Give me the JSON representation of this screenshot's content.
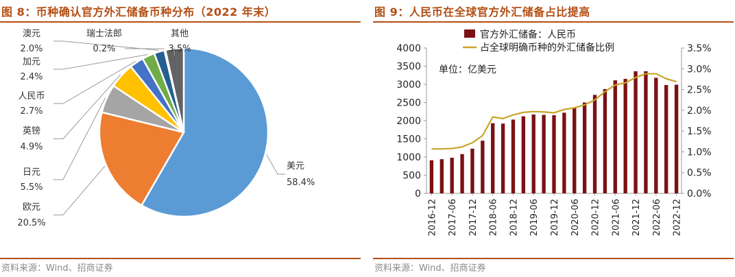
{
  "fig8": {
    "title": "图 8：币种确认官方外汇储备币种分布（2022 年末）",
    "source": "资料来源：Wind、招商证券"
  },
  "fig9": {
    "title": "图 9：人民币在全球官方外汇储备占比提高",
    "source": "资料来源：Wind、招商证券",
    "unit_note": "单位：亿美元"
  },
  "chart_data": [
    {
      "type": "pie",
      "slices": [
        {
          "label": "美元",
          "value": 58.4,
          "display": "58.4%",
          "color": "#5b9bd5"
        },
        {
          "label": "欧元",
          "value": 20.5,
          "display": "20.5%",
          "color": "#ed7d31"
        },
        {
          "label": "日元",
          "value": 5.5,
          "display": "5.5%",
          "color": "#a5a5a5"
        },
        {
          "label": "英镑",
          "value": 4.9,
          "display": "4.9%",
          "color": "#ffc000"
        },
        {
          "label": "人民币",
          "value": 2.7,
          "display": "2.7%",
          "color": "#4472c4"
        },
        {
          "label": "加元",
          "value": 2.4,
          "display": "2.4%",
          "color": "#70ad47"
        },
        {
          "label": "澳元",
          "value": 2.0,
          "display": "2.0%",
          "color": "#255e91"
        },
        {
          "label": "瑞士法郎",
          "value": 0.2,
          "display": "0.2%",
          "color": "#9e480e"
        },
        {
          "label": "其他",
          "value": 3.5,
          "display": "3.5%",
          "color": "#636363"
        }
      ]
    },
    {
      "type": "bar",
      "x": [
        "2016-12",
        "2017-03",
        "2017-06",
        "2017-09",
        "2017-12",
        "2018-03",
        "2018-06",
        "2018-09",
        "2018-12",
        "2019-03",
        "2019-06",
        "2019-09",
        "2019-12",
        "2020-03",
        "2020-06",
        "2020-09",
        "2020-12",
        "2021-03",
        "2021-06",
        "2021-09",
        "2021-12",
        "2022-03",
        "2022-06",
        "2022-09",
        "2022-12"
      ],
      "x_tick_labels": [
        "2016-12",
        "2017-06",
        "2017-12",
        "2018-06",
        "2018-12",
        "2019-06",
        "2019-12",
        "2020-06",
        "2020-12",
        "2021-06",
        "2021-12",
        "2022-06",
        "2022-12"
      ],
      "series": [
        {
          "name": "官方外汇储备：人民币",
          "type": "bar",
          "axis": "left",
          "color": "#7b1113",
          "values": [
            910,
            940,
            980,
            1080,
            1230,
            1450,
            1930,
            1920,
            2030,
            2120,
            2170,
            2160,
            2150,
            2220,
            2360,
            2500,
            2710,
            2870,
            3110,
            3150,
            3360,
            3360,
            3180,
            2980,
            2990
          ]
        },
        {
          "name": "占全球明确币种的外汇储备比例",
          "type": "line",
          "axis": "right",
          "color": "#c9a227",
          "values": [
            1.07,
            1.07,
            1.08,
            1.12,
            1.22,
            1.39,
            1.84,
            1.8,
            1.89,
            1.95,
            1.97,
            1.96,
            1.94,
            2.02,
            2.06,
            2.13,
            2.25,
            2.45,
            2.61,
            2.66,
            2.79,
            2.88,
            2.88,
            2.76,
            2.69
          ]
        }
      ],
      "y_left": {
        "min": 0,
        "max": 4000,
        "ticks": [
          "0",
          "500",
          "1000",
          "1500",
          "2000",
          "2500",
          "3000",
          "3500",
          "4000"
        ]
      },
      "y_right": {
        "min": 0,
        "max": 3.5,
        "ticks": [
          "0.0%",
          "0.5%",
          "1.0%",
          "1.5%",
          "2.0%",
          "2.5%",
          "3.0%",
          "3.5%"
        ]
      }
    }
  ]
}
